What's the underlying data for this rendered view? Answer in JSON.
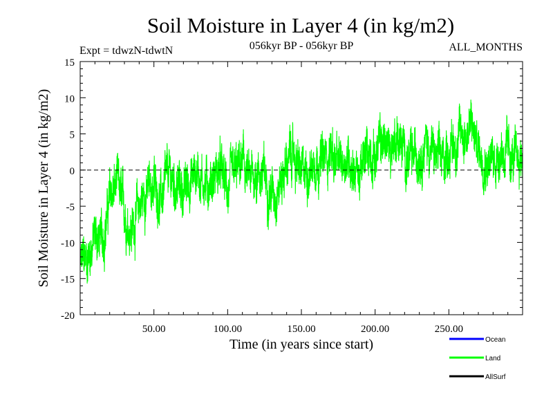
{
  "chart_data": {
    "type": "line",
    "title": "Soil Moisture in Layer 4 (in kg/m2)",
    "subtitle_left": "Expt = tdwzN-tdwtN",
    "subtitle_center": "056kyr BP - 056kyr BP",
    "subtitle_right": "ALL_MONTHS",
    "xlabel": "Time (in years since start)",
    "ylabel": "Soil Moisture in Layer 4 (in kg/m2)",
    "xlim": [
      0,
      300
    ],
    "ylim": [
      -20,
      15
    ],
    "x_ticks": [
      {
        "value": 50,
        "label": "50.00"
      },
      {
        "value": 100,
        "label": "100.00"
      },
      {
        "value": 150,
        "label": "150.00"
      },
      {
        "value": 200,
        "label": "200.00"
      },
      {
        "value": 250,
        "label": "250.00"
      }
    ],
    "y_ticks": [
      {
        "value": 15,
        "label": "15"
      },
      {
        "value": 10,
        "label": "10"
      },
      {
        "value": 5,
        "label": "5"
      },
      {
        "value": 0,
        "label": "0"
      },
      {
        "value": -5,
        "label": "-5"
      },
      {
        "value": -10,
        "label": "-10"
      },
      {
        "value": -15,
        "label": "-15"
      },
      {
        "value": -20,
        "label": "-20"
      }
    ],
    "zero_line": 0,
    "legend_position": "bottom-right",
    "series": [
      {
        "name": "Land",
        "color": "#00ff00",
        "x_start": 0,
        "x_step": 5,
        "values": [
          -13.5,
          -12,
          -9,
          -10,
          -4,
          -2,
          -6,
          -8,
          -5,
          -3,
          -2,
          -4,
          -1,
          -2,
          -3,
          -1,
          0,
          -2,
          -1,
          0,
          -3,
          -1,
          1,
          -2,
          0,
          -1,
          -3,
          -2,
          1,
          2,
          -1,
          0,
          2,
          1,
          3,
          0,
          2,
          1,
          -1,
          3,
          2,
          4,
          3,
          5,
          2,
          1,
          3,
          4,
          2,
          1,
          3,
          4,
          5,
          6,
          3,
          2,
          1,
          3,
          2,
          1,
          2
        ]
      },
      {
        "name": "Ocean",
        "color": "#0000ff",
        "values": []
      },
      {
        "name": "AllSurf",
        "color": "#000000",
        "values": []
      }
    ],
    "legend": [
      {
        "label": "Ocean",
        "color": "#0000ff"
      },
      {
        "label": "Land",
        "color": "#00ff00"
      },
      {
        "label": "AllSurf",
        "color": "#000000"
      }
    ]
  }
}
